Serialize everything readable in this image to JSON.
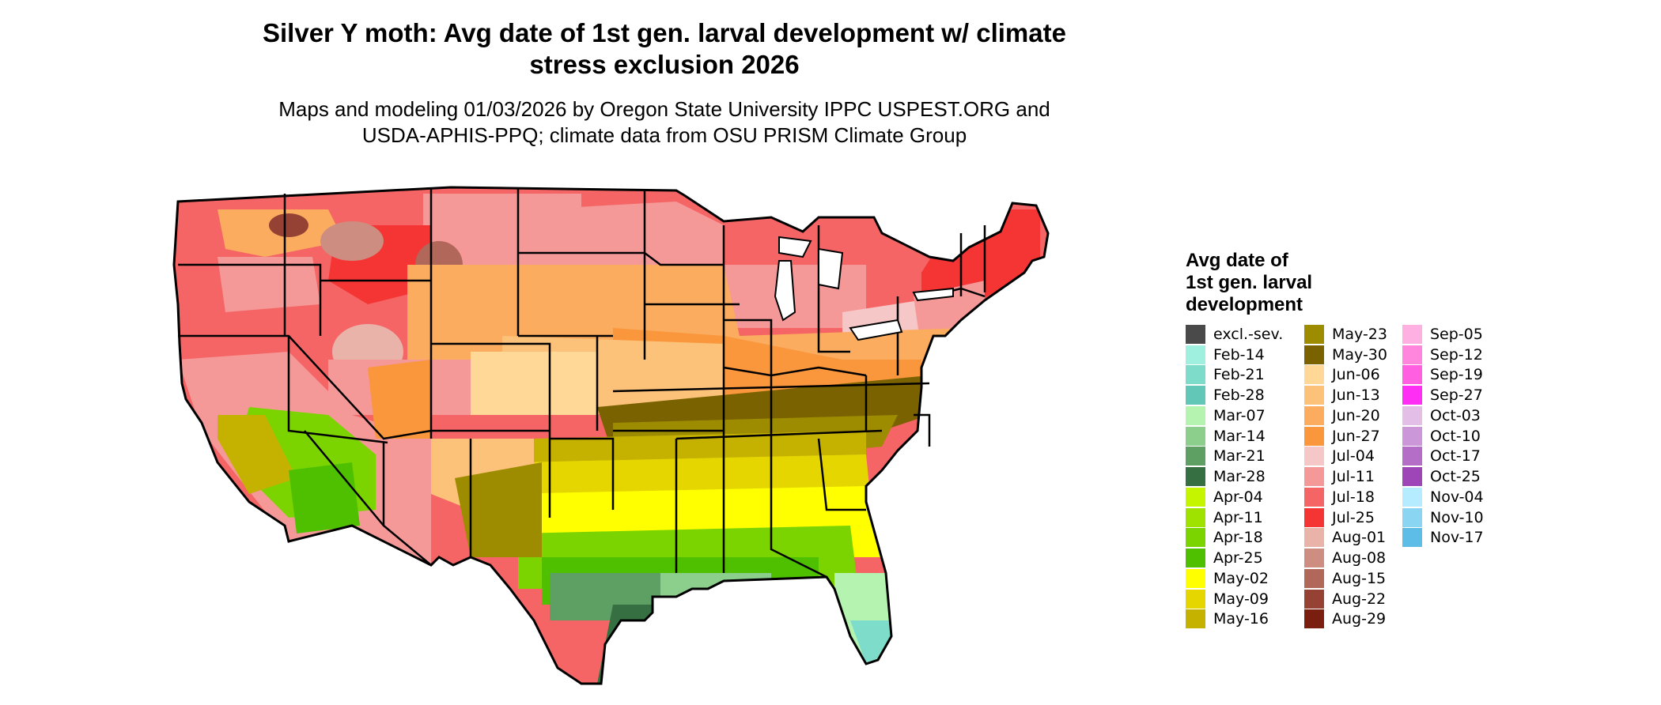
{
  "title_line1": "Silver Y moth: Avg date of 1st gen. larval development w/ climate",
  "title_line2": "stress exclusion 2026",
  "subtitle_line1": "Maps and modeling 01/03/2026 by Oregon State University IPPC USPEST.ORG and",
  "subtitle_line2": "USDA-APHIS-PPQ; climate data from OSU PRISM Climate Group",
  "legend": {
    "title_line1": "Avg date of",
    "title_line2": "1st gen. larval",
    "title_line3": "development",
    "columns": [
      [
        {
          "label": "excl.-sev.",
          "color": "#4a4a4a"
        },
        {
          "label": "Feb-14",
          "color": "#9ff0de"
        },
        {
          "label": "Feb-21",
          "color": "#7edccb"
        },
        {
          "label": "Feb-28",
          "color": "#62c7b7"
        },
        {
          "label": "Mar-07",
          "color": "#b5f3b1"
        },
        {
          "label": "Mar-14",
          "color": "#8ccf8c"
        },
        {
          "label": "Mar-21",
          "color": "#5e9f64"
        },
        {
          "label": "Mar-28",
          "color": "#367042"
        },
        {
          "label": "Apr-04",
          "color": "#c6f500"
        },
        {
          "label": "Apr-11",
          "color": "#9fe200"
        },
        {
          "label": "Apr-18",
          "color": "#7bd400"
        },
        {
          "label": "Apr-25",
          "color": "#4fc000"
        },
        {
          "label": "May-02",
          "color": "#ffff00"
        },
        {
          "label": "May-09",
          "color": "#e6d600"
        },
        {
          "label": "May-16",
          "color": "#c5b100"
        }
      ],
      [
        {
          "label": "May-23",
          "color": "#9d8b00"
        },
        {
          "label": "May-30",
          "color": "#7a6200"
        },
        {
          "label": "Jun-06",
          "color": "#ffd898"
        },
        {
          "label": "Jun-13",
          "color": "#fcc27a"
        },
        {
          "label": "Jun-20",
          "color": "#fbac5e"
        },
        {
          "label": "Jun-27",
          "color": "#fa963c"
        },
        {
          "label": "Jul-04",
          "color": "#f5c7c7"
        },
        {
          "label": "Jul-11",
          "color": "#f59898"
        },
        {
          "label": "Jul-18",
          "color": "#f56565"
        },
        {
          "label": "Jul-25",
          "color": "#f53434"
        },
        {
          "label": "Aug-01",
          "color": "#e9b3aa"
        },
        {
          "label": "Aug-08",
          "color": "#cd8d80"
        },
        {
          "label": "Aug-15",
          "color": "#b1675a"
        },
        {
          "label": "Aug-22",
          "color": "#954235"
        },
        {
          "label": "Aug-29",
          "color": "#7a1e0f"
        }
      ],
      [
        {
          "label": "Sep-05",
          "color": "#ffb0e2"
        },
        {
          "label": "Sep-12",
          "color": "#ff86dc"
        },
        {
          "label": "Sep-19",
          "color": "#ff5fe0"
        },
        {
          "label": "Sep-27",
          "color": "#ff2ef5"
        },
        {
          "label": "Oct-03",
          "color": "#e3bfe8"
        },
        {
          "label": "Oct-10",
          "color": "#cc97d8"
        },
        {
          "label": "Oct-17",
          "color": "#b56ec8"
        },
        {
          "label": "Oct-25",
          "color": "#9e46b8"
        },
        {
          "label": "Nov-04",
          "color": "#b6ecff"
        },
        {
          "label": "Nov-10",
          "color": "#8ad6f2"
        },
        {
          "label": "Nov-17",
          "color": "#5ebde6"
        }
      ]
    ]
  },
  "map": {
    "outline_color": "#000000"
  }
}
